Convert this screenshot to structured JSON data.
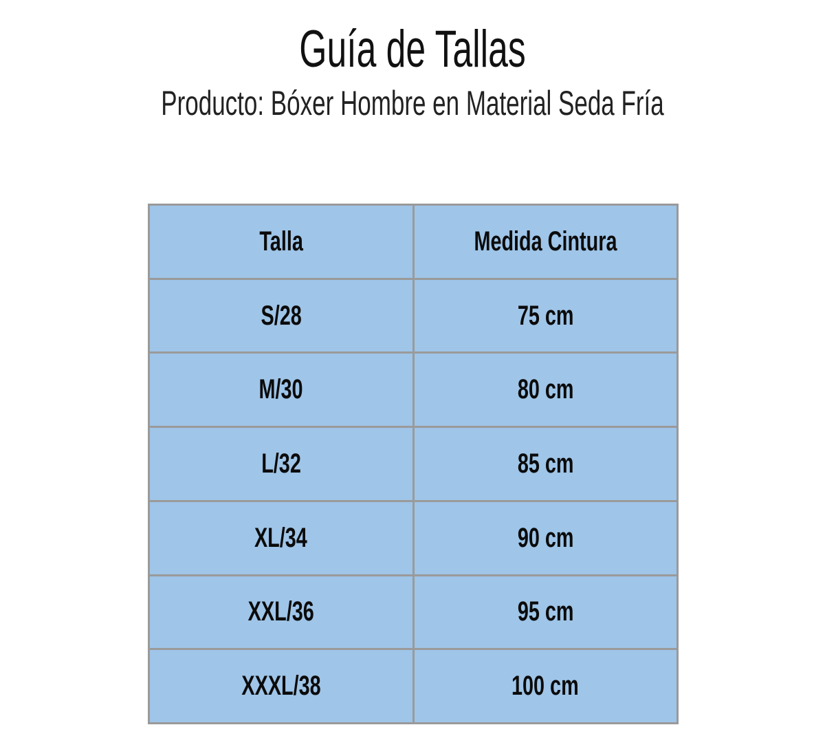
{
  "header": {
    "title": "Guía de Tallas",
    "subtitle": "Producto: Bóxer Hombre en Material Seda Fría"
  },
  "table": {
    "fill_color": "#9fc5e8",
    "columns": [
      "Talla",
      "Medida Cintura"
    ],
    "rows": [
      [
        "S/28",
        "75 cm"
      ],
      [
        "M/30",
        "80 cm"
      ],
      [
        "L/32",
        "85 cm"
      ],
      [
        "XL/34",
        "90 cm"
      ],
      [
        "XXL/36",
        "95 cm"
      ],
      [
        "XXXL/38",
        "100 cm"
      ]
    ]
  }
}
